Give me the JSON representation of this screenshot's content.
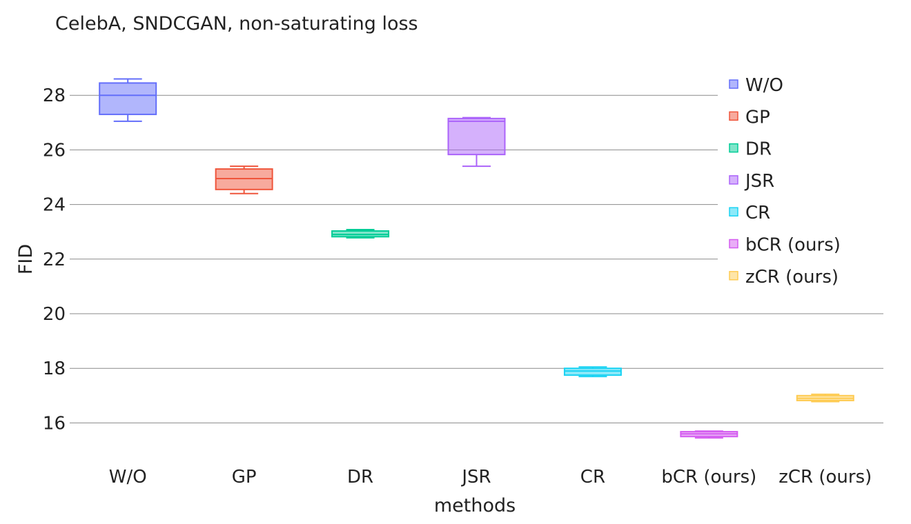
{
  "chart_data": {
    "type": "box",
    "title": "CelebA, SNDCGAN, non-saturating loss",
    "xlabel": "methods",
    "ylabel": "FID",
    "ylim": [
      15,
      29.5
    ],
    "yticks": [
      16,
      18,
      20,
      22,
      24,
      26,
      28
    ],
    "grid": true,
    "legend_position": "top-right",
    "categories": [
      "W/O",
      "GP",
      "DR",
      "JSR",
      "CR",
      "bCR (ours)",
      "zCR (ours)"
    ],
    "series": [
      {
        "name": "W/O",
        "color": "#636efa",
        "min": 27.05,
        "q1": 27.3,
        "median": 28.0,
        "q3": 28.45,
        "max": 28.6
      },
      {
        "name": "GP",
        "color": "#ef553b",
        "min": 24.4,
        "q1": 24.55,
        "median": 24.95,
        "q3": 25.3,
        "max": 25.4
      },
      {
        "name": "DR",
        "color": "#00cc96",
        "min": 22.78,
        "q1": 22.82,
        "median": 22.9,
        "q3": 23.03,
        "max": 23.08
      },
      {
        "name": "JSR",
        "color": "#ab63fa",
        "min": 25.4,
        "q1": 25.83,
        "median": 27.05,
        "q3": 27.15,
        "max": 27.18
      },
      {
        "name": "CR",
        "color": "#19d3f3",
        "min": 17.7,
        "q1": 17.75,
        "median": 17.9,
        "q3": 18.0,
        "max": 18.05
      },
      {
        "name": "bCR (ours)",
        "color": "#d45cf0",
        "min": 15.45,
        "q1": 15.5,
        "median": 15.6,
        "q3": 15.68,
        "max": 15.7
      },
      {
        "name": "zCR (ours)",
        "color": "#fecb52",
        "min": 16.78,
        "q1": 16.82,
        "median": 16.9,
        "q3": 17.0,
        "max": 17.05
      }
    ]
  }
}
